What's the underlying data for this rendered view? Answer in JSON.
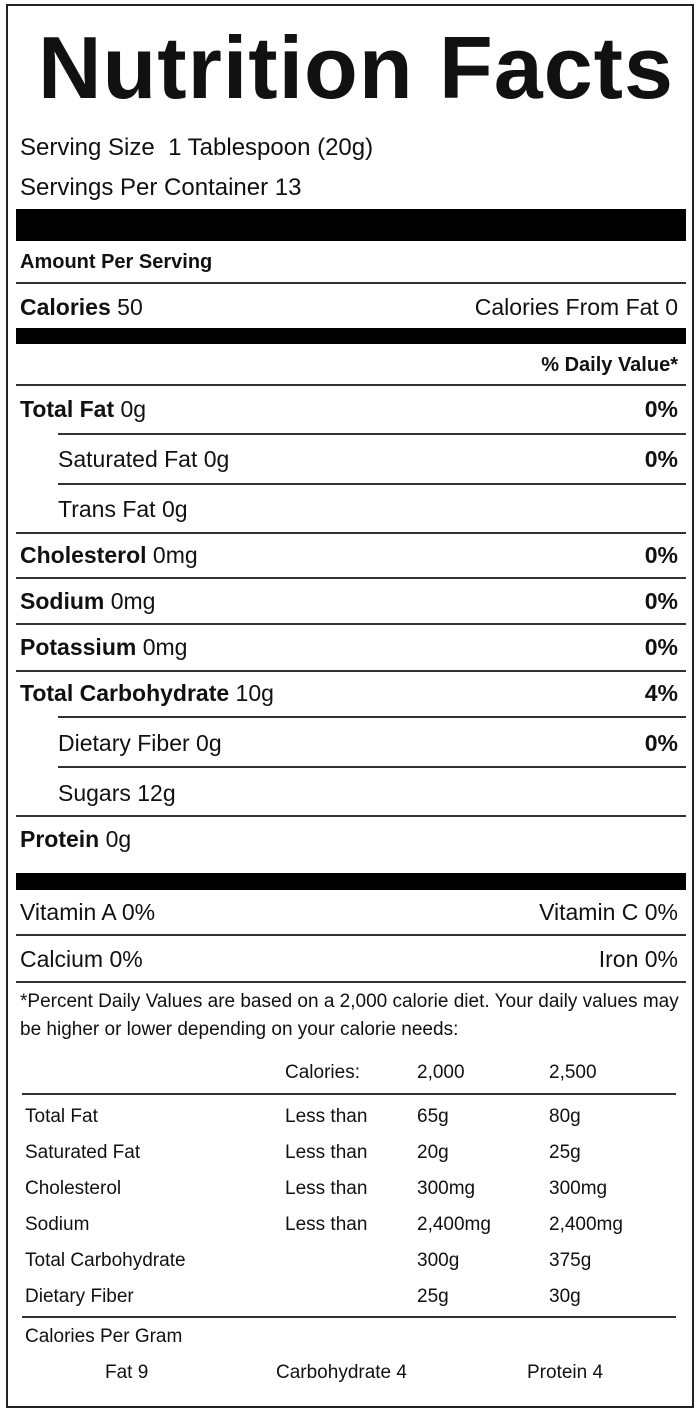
{
  "title": "Nutrition Facts",
  "serving": {
    "size_label": "Serving Size",
    "size_value": "1 Tablespoon (20g)",
    "per_container": "Servings Per Container 13"
  },
  "amount_per_serving": "Amount Per Serving",
  "calories": {
    "label": "Calories",
    "value": "50",
    "from_fat": "Calories From Fat 0"
  },
  "daily_value_header": "% Daily Value*",
  "nutrients": [
    {
      "name": "Total Fat",
      "amount": "0g",
      "dv": "0%"
    },
    {
      "name": "Saturated Fat",
      "amount": "0g",
      "dv": "0%"
    },
    {
      "name": "Trans Fat",
      "amount": "0g",
      "dv": ""
    },
    {
      "name": "Cholesterol",
      "amount": "0mg",
      "dv": "0%"
    },
    {
      "name": "Sodium",
      "amount": "0mg",
      "dv": "0%"
    },
    {
      "name": "Potassium",
      "amount": "0mg",
      "dv": "0%"
    },
    {
      "name": "Total Carbohydrate",
      "amount": "10g",
      "dv": "4%"
    },
    {
      "name": "Dietary Fiber",
      "amount": "0g",
      "dv": "0%"
    },
    {
      "name": "Sugars",
      "amount": "12g",
      "dv": ""
    },
    {
      "name": "Protein",
      "amount": "0g",
      "dv": ""
    }
  ],
  "vitamins": {
    "vitamin_a": "Vitamin A 0%",
    "vitamin_c": "Vitamin C 0%",
    "calcium": "Calcium 0%",
    "iron": "Iron 0%"
  },
  "footnote": "*Percent Daily Values are based on a 2,000 calorie diet. Your daily values may be higher or lower depending on your calorie needs:",
  "dv_table": {
    "header": [
      "",
      "Calories:",
      "2,000",
      "2,500"
    ],
    "rows": [
      [
        "Total Fat",
        "Less than",
        "65g",
        "80g"
      ],
      [
        "Saturated Fat",
        "Less than",
        "20g",
        "25g"
      ],
      [
        "Cholesterol",
        "Less than",
        "300mg",
        "300mg"
      ],
      [
        "Sodium",
        "Less than",
        "2,400mg",
        "2,400mg"
      ],
      [
        "Total Carbohydrate",
        "",
        "300g",
        "375g"
      ],
      [
        "Dietary Fiber",
        "",
        "25g",
        "30g"
      ]
    ]
  },
  "calories_per_gram": {
    "label": "Calories Per Gram",
    "fat": "Fat 9",
    "carbohydrate": "Carbohydrate 4",
    "protein": "Protein 4"
  }
}
